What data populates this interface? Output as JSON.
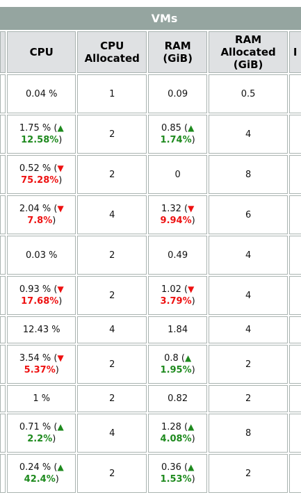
{
  "group_title": "VMs",
  "columns": {
    "cpu": "CPU",
    "cpu_alloc": "CPU\nAllocated",
    "ram": "RAM\n(GiB)",
    "ram_alloc": "RAM\nAllocated\n(GiB)",
    "next_partial": "I"
  },
  "rows": [
    {
      "cpu": "0.04 %",
      "cpu_trend": null,
      "cpu_delta": null,
      "cpu_alloc": "1",
      "ram": "0.09",
      "ram_trend": null,
      "ram_delta": null,
      "ram_alloc": "0.5"
    },
    {
      "cpu": "1.75 % (",
      "cpu_trend": "up",
      "cpu_delta": "12.58%",
      "cpu_alloc": "2",
      "ram": "0.85 (",
      "ram_trend": "up",
      "ram_delta": "1.74%",
      "ram_alloc": "4"
    },
    {
      "cpu": "0.52 % (",
      "cpu_trend": "down",
      "cpu_delta": "75.28%",
      "cpu_alloc": "2",
      "ram": "0",
      "ram_trend": null,
      "ram_delta": null,
      "ram_alloc": "8"
    },
    {
      "cpu": "2.04 % (",
      "cpu_trend": "down",
      "cpu_delta": "7.8%",
      "cpu_alloc": "4",
      "ram": "1.32 (",
      "ram_trend": "down",
      "ram_delta": "9.94%",
      "ram_alloc": "6"
    },
    {
      "cpu": "0.03 %",
      "cpu_trend": null,
      "cpu_delta": null,
      "cpu_alloc": "2",
      "ram": "0.49",
      "ram_trend": null,
      "ram_delta": null,
      "ram_alloc": "4"
    },
    {
      "cpu": "0.93 % (",
      "cpu_trend": "down",
      "cpu_delta": "17.68%",
      "cpu_alloc": "2",
      "ram": "1.02 (",
      "ram_trend": "down",
      "ram_delta": "3.79%",
      "ram_alloc": "4"
    },
    {
      "cpu": "12.43 %",
      "cpu_trend": null,
      "cpu_delta": null,
      "cpu_alloc": "4",
      "ram": "1.84",
      "ram_trend": null,
      "ram_delta": null,
      "ram_alloc": "4"
    },
    {
      "cpu": "3.54 % (",
      "cpu_trend": "down",
      "cpu_delta": "5.37%",
      "cpu_alloc": "2",
      "ram": "0.8 (",
      "ram_trend": "up",
      "ram_delta": "1.95%",
      "ram_alloc": "2"
    },
    {
      "cpu": "1 %",
      "cpu_trend": null,
      "cpu_delta": null,
      "cpu_alloc": "2",
      "ram": "0.82",
      "ram_trend": null,
      "ram_delta": null,
      "ram_alloc": "2"
    },
    {
      "cpu": "0.71 % (",
      "cpu_trend": "up",
      "cpu_delta": "2.2%",
      "cpu_alloc": "4",
      "ram": "1.28 (",
      "ram_trend": "up",
      "ram_delta": "4.08%",
      "ram_alloc": "8"
    },
    {
      "cpu": "0.24 % (",
      "cpu_trend": "up",
      "cpu_delta": "42.4%",
      "cpu_alloc": "2",
      "ram": "0.36 (",
      "ram_trend": "up",
      "ram_delta": "1.53%",
      "ram_alloc": "2"
    }
  ],
  "icons": {
    "up": "triangle-up-icon",
    "down": "triangle-down-icon"
  },
  "colors": {
    "header_band": "#95a5a0",
    "header_cell": "#dfe1e3",
    "up": "#1e8a1e",
    "down": "#ee1111",
    "border": "#a9b3b0"
  }
}
